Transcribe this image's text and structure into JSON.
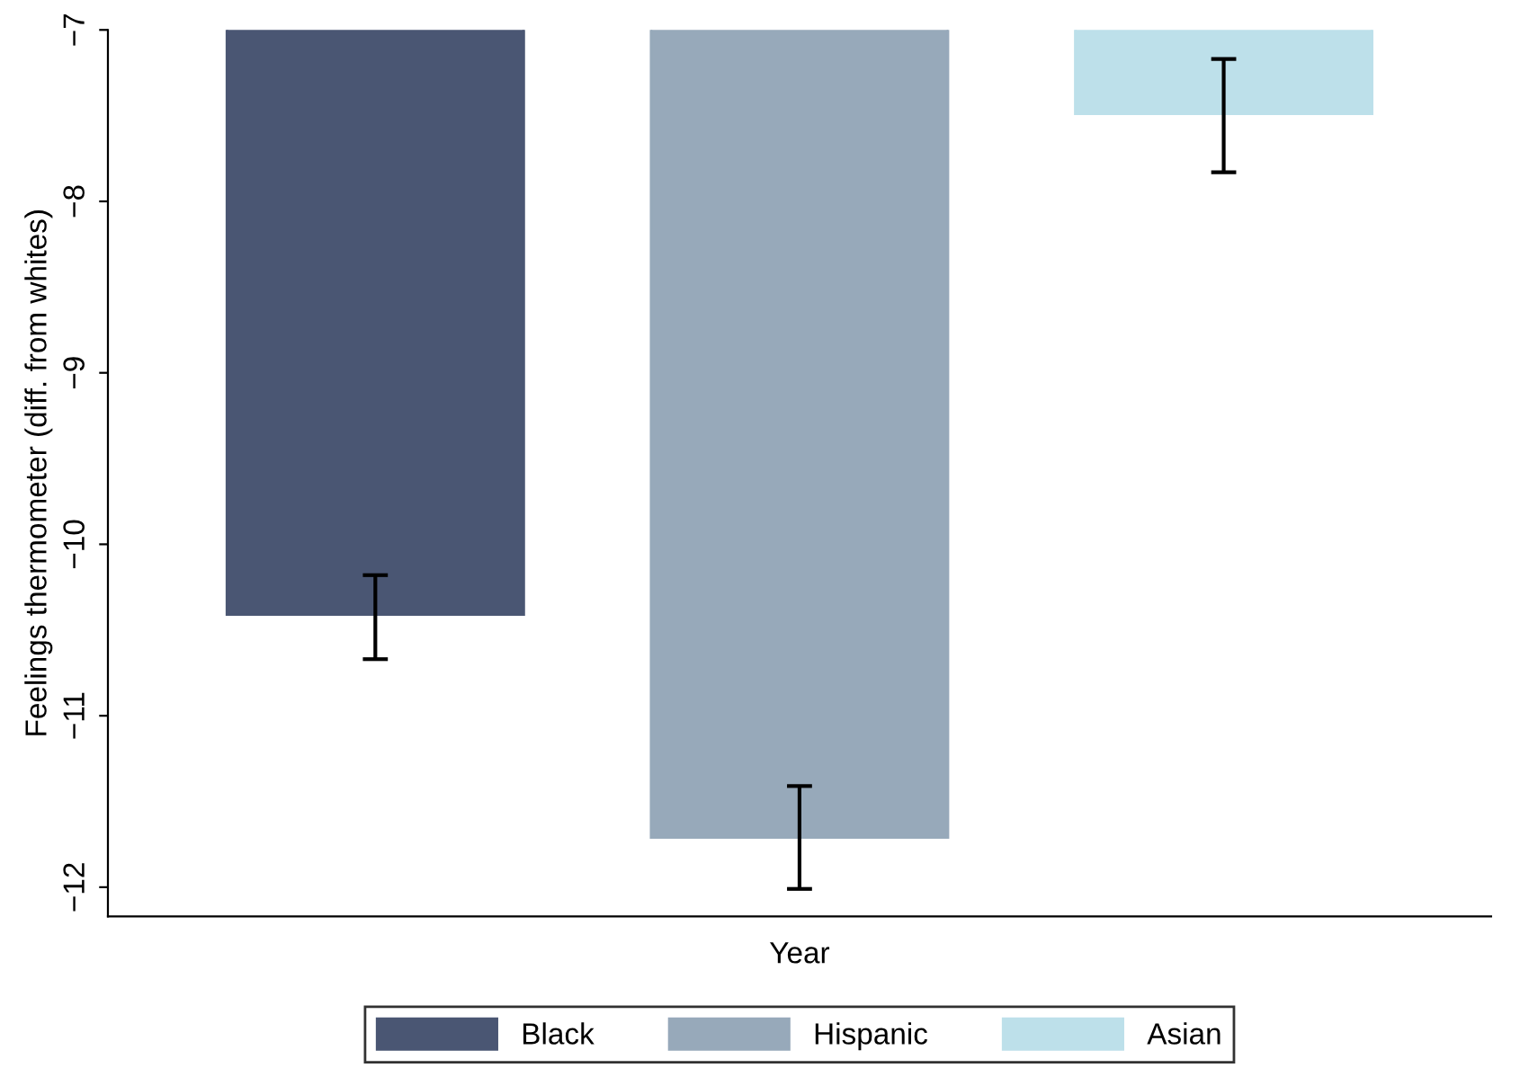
{
  "chart_data": {
    "type": "bar",
    "xlabel": "Year",
    "ylabel": "Feelings thermometer (diff. from whites)",
    "categories": [
      null
    ],
    "series": [
      {
        "name": "Black",
        "color": "#4a5673",
        "values": [
          -10.41
        ],
        "errors": [
          [
            -10.67,
            -10.18
          ]
        ]
      },
      {
        "name": "Hispanic",
        "color": "#97a9ba",
        "values": [
          -11.71
        ],
        "errors": [
          [
            -12.01,
            -11.41
          ]
        ]
      },
      {
        "name": "Asian",
        "color": "#bde0ea",
        "values": [
          -7.49
        ],
        "errors": [
          [
            -7.83,
            -7.17
          ]
        ]
      }
    ],
    "ylim": [
      -12.17,
      -7
    ],
    "yticks": [
      {
        "value": -12,
        "label": "−12"
      },
      {
        "value": -11,
        "label": "−11"
      },
      {
        "value": -10,
        "label": "−10"
      },
      {
        "value": -9,
        "label": "−9"
      },
      {
        "value": -8,
        "label": "−8"
      },
      {
        "value": -7,
        "label": "−7"
      }
    ],
    "grid": false,
    "legend": "bottom"
  }
}
